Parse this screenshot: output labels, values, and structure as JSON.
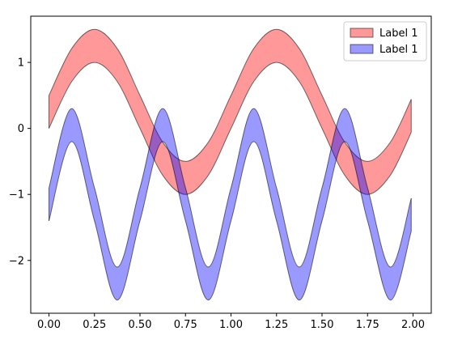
{
  "chart_data": {
    "type": "area",
    "title": "",
    "xlabel": "",
    "ylabel": "",
    "xlim": [
      -0.1,
      2.1
    ],
    "ylim": [
      -2.8,
      1.7
    ],
    "grid": false,
    "legend_position": "top-right",
    "x_ticks": [
      0.0,
      0.25,
      0.5,
      0.75,
      1.0,
      1.25,
      1.5,
      1.75,
      2.0
    ],
    "x_tick_labels": [
      "0.00",
      "0.25",
      "0.50",
      "0.75",
      "1.00",
      "1.25",
      "1.50",
      "1.75",
      "2.00"
    ],
    "y_ticks": [
      1,
      0,
      -1,
      -2
    ],
    "y_tick_labels": [
      "1",
      "0",
      "−1",
      "−2"
    ],
    "series": [
      {
        "name": "Label 1",
        "color": "#ff0000",
        "edge_color": "#000000",
        "alpha": 0.4,
        "x": [
          0.0,
          0.125,
          0.25,
          0.375,
          0.5,
          0.625,
          0.75,
          0.875,
          1.0,
          1.125,
          1.25,
          1.375,
          1.5,
          1.625,
          1.75,
          1.875,
          1.99
        ],
        "lower": [
          0.0,
          0.71,
          1.0,
          0.71,
          0.0,
          -0.71,
          -1.0,
          -0.71,
          0.0,
          0.71,
          1.0,
          0.71,
          0.0,
          -0.71,
          -1.0,
          -0.71,
          -0.06
        ],
        "upper": [
          0.5,
          1.21,
          1.5,
          1.21,
          0.5,
          -0.21,
          -0.5,
          -0.21,
          0.5,
          1.21,
          1.5,
          1.21,
          0.5,
          -0.21,
          -0.5,
          -0.21,
          0.44
        ]
      },
      {
        "name": "Label 1",
        "color": "#0000ff",
        "edge_color": "#000000",
        "alpha": 0.4,
        "x": [
          0.0,
          0.125,
          0.25,
          0.375,
          0.5,
          0.625,
          0.75,
          0.875,
          1.0,
          1.125,
          1.25,
          1.375,
          1.5,
          1.625,
          1.75,
          1.875,
          1.99
        ],
        "lower": [
          -1.4,
          -0.2,
          -1.4,
          -2.6,
          -1.4,
          -0.2,
          -1.4,
          -2.6,
          -1.4,
          -0.2,
          -1.4,
          -2.6,
          -1.4,
          -0.2,
          -1.4,
          -2.6,
          -1.56
        ],
        "upper": [
          -0.9,
          0.3,
          -0.9,
          -2.1,
          -0.9,
          0.3,
          -0.9,
          -2.1,
          -0.9,
          0.3,
          -0.9,
          -2.1,
          -0.9,
          0.3,
          -0.9,
          -2.1,
          -1.06
        ]
      }
    ]
  }
}
